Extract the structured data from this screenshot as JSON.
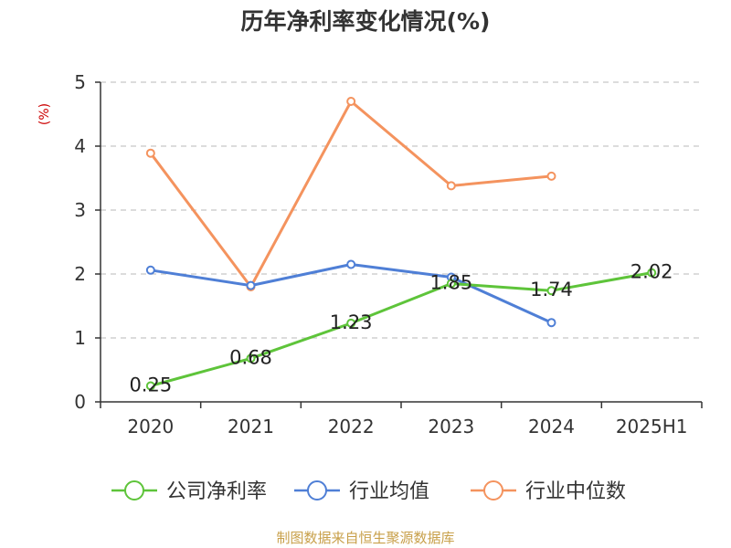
{
  "chart_data": {
    "type": "line",
    "title": "历年净利率变化情况(%)",
    "ylabel": "(%)",
    "xlabel": "",
    "categories": [
      "2020",
      "2021",
      "2022",
      "2023",
      "2024",
      "2025H1"
    ],
    "ylim": [
      0,
      5
    ],
    "yticks": [
      "0",
      "1",
      "2",
      "3",
      "4",
      "5"
    ],
    "grid": true,
    "legend_position": "bottom",
    "series": [
      {
        "name": "公司净利率",
        "color": "#5ec43a",
        "values": [
          0.25,
          0.68,
          1.23,
          1.85,
          1.74,
          2.02
        ],
        "labels": [
          "0.25",
          "0.68",
          "1.23",
          "1.85",
          "1.74",
          "2.02"
        ],
        "show_labels": true
      },
      {
        "name": "行业均值",
        "color": "#4f7fd6",
        "values": [
          2.06,
          1.82,
          2.15,
          1.95,
          1.24,
          null
        ],
        "show_labels": false
      },
      {
        "name": "行业中位数",
        "color": "#f4935e",
        "values": [
          3.89,
          1.8,
          4.7,
          3.38,
          3.53,
          null
        ],
        "show_labels": false
      }
    ]
  },
  "source": "制图数据来自恒生聚源数据库",
  "colors": {
    "axis": "#333333",
    "grid": "#c8c8c8",
    "ylabel": "#cc0000",
    "text": "#333333"
  }
}
